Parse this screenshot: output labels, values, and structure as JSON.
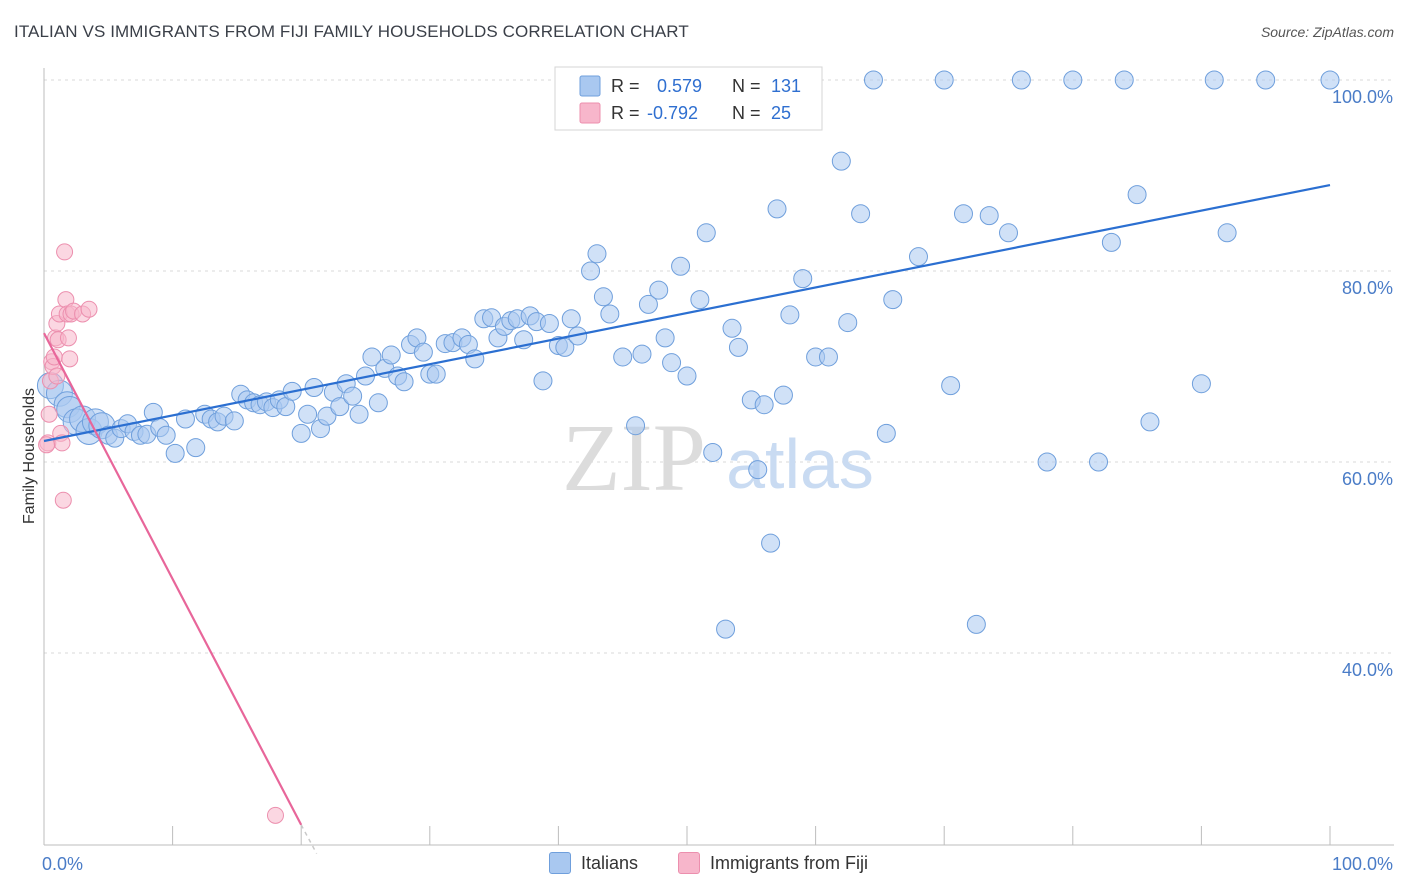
{
  "title": "ITALIAN VS IMMIGRANTS FROM FIJI FAMILY HOUSEHOLDS CORRELATION CHART",
  "source": "Source: ZipAtlas.com",
  "watermark": {
    "zip": "ZIP",
    "atlas": "atlas"
  },
  "colors": {
    "blue_fill": "#a9c8f0",
    "blue_stroke": "#6f9fdc",
    "blue_line": "#2b6fd1",
    "pink_fill": "#f7b6cb",
    "pink_stroke": "#ec8fae",
    "pink_line": "#e8669a",
    "axis_text": "#4a7cc7",
    "grid": "#d9d9d9"
  },
  "legend": {
    "rows": [
      {
        "r_label": "R =",
        "r_value": "0.579",
        "n_label": "N =",
        "n_value": "131",
        "color": "#a9c8f0"
      },
      {
        "r_label": "R =",
        "r_value": "-0.792",
        "n_label": "N =",
        "n_value": "25",
        "color": "#f7b6cb"
      }
    ]
  },
  "bottom_legend": [
    {
      "label": "Italians",
      "color": "#a9c8f0"
    },
    {
      "label": "Immigrants from Fiji",
      "color": "#f7b6cb"
    }
  ],
  "chart_data": {
    "type": "scatter",
    "title": "ITALIAN VS IMMIGRANTS FROM FIJI FAMILY HOUSEHOLDS CORRELATION CHART",
    "xlabel": "",
    "ylabel": "Family Households",
    "xlim": [
      0,
      100
    ],
    "ylim": [
      20,
      102
    ],
    "x_tick_labels": [
      "0.0%",
      "100.0%"
    ],
    "y_ticks": [
      40,
      60,
      80,
      100
    ],
    "y_tick_labels": [
      "40.0%",
      "60.0%",
      "80.0%",
      "100.0%"
    ],
    "grid": true,
    "series": [
      {
        "name": "Italians",
        "trend": {
          "x": [
            0,
            100
          ],
          "y": [
            62.2,
            89.0
          ]
        },
        "points": [
          [
            0.5,
            68.0
          ],
          [
            1.2,
            67.2
          ],
          [
            1.8,
            66.0
          ],
          [
            2.0,
            65.5
          ],
          [
            2.5,
            64.2
          ],
          [
            3.0,
            64.5
          ],
          [
            3.5,
            63.2
          ],
          [
            4.0,
            64.2
          ],
          [
            4.5,
            63.8
          ],
          [
            5.0,
            62.8
          ],
          [
            5.5,
            62.5
          ],
          [
            6.0,
            63.5
          ],
          [
            6.5,
            64.0
          ],
          [
            7.0,
            63.2
          ],
          [
            7.5,
            62.8
          ],
          [
            8.0,
            62.9
          ],
          [
            8.5,
            65.2
          ],
          [
            9.0,
            63.6
          ],
          [
            9.5,
            62.8
          ],
          [
            10.2,
            60.9
          ],
          [
            11.0,
            64.5
          ],
          [
            11.8,
            61.5
          ],
          [
            12.5,
            65.0
          ],
          [
            13.0,
            64.5
          ],
          [
            13.5,
            64.2
          ],
          [
            14.0,
            64.8
          ],
          [
            14.8,
            64.3
          ],
          [
            15.3,
            67.1
          ],
          [
            15.8,
            66.5
          ],
          [
            16.3,
            66.2
          ],
          [
            16.8,
            66.0
          ],
          [
            17.3,
            66.3
          ],
          [
            17.8,
            65.7
          ],
          [
            18.3,
            66.5
          ],
          [
            18.8,
            65.8
          ],
          [
            19.3,
            67.4
          ],
          [
            20.0,
            63.0
          ],
          [
            20.5,
            65.0
          ],
          [
            21.0,
            67.8
          ],
          [
            21.5,
            63.5
          ],
          [
            22.0,
            64.8
          ],
          [
            22.5,
            67.3
          ],
          [
            23.0,
            65.8
          ],
          [
            23.5,
            68.2
          ],
          [
            24.0,
            66.9
          ],
          [
            24.5,
            65.0
          ],
          [
            25.0,
            69.0
          ],
          [
            25.5,
            71.0
          ],
          [
            26.0,
            66.2
          ],
          [
            26.5,
            69.8
          ],
          [
            27.0,
            71.2
          ],
          [
            27.5,
            69.0
          ],
          [
            28.0,
            68.4
          ],
          [
            28.5,
            72.3
          ],
          [
            29.0,
            73.0
          ],
          [
            29.5,
            71.5
          ],
          [
            30.0,
            69.2
          ],
          [
            30.5,
            69.2
          ],
          [
            31.2,
            72.4
          ],
          [
            31.8,
            72.5
          ],
          [
            32.5,
            73.0
          ],
          [
            33.0,
            72.3
          ],
          [
            33.5,
            70.8
          ],
          [
            34.2,
            75.0
          ],
          [
            34.8,
            75.1
          ],
          [
            35.3,
            73.0
          ],
          [
            35.8,
            74.2
          ],
          [
            36.3,
            74.8
          ],
          [
            36.8,
            75.0
          ],
          [
            37.3,
            72.8
          ],
          [
            37.8,
            75.3
          ],
          [
            38.3,
            74.7
          ],
          [
            38.8,
            68.5
          ],
          [
            39.3,
            74.5
          ],
          [
            40.0,
            72.2
          ],
          [
            40.5,
            72.0
          ],
          [
            41.0,
            75.0
          ],
          [
            41.5,
            73.2
          ],
          [
            42.5,
            80.0
          ],
          [
            43.0,
            81.8
          ],
          [
            43.5,
            77.3
          ],
          [
            44.0,
            75.5
          ],
          [
            45.0,
            71.0
          ],
          [
            46.0,
            63.8
          ],
          [
            46.5,
            71.3
          ],
          [
            47.0,
            76.5
          ],
          [
            47.8,
            78.0
          ],
          [
            48.3,
            73.0
          ],
          [
            48.8,
            70.4
          ],
          [
            49.5,
            80.5
          ],
          [
            50.0,
            69.0
          ],
          [
            51.0,
            77.0
          ],
          [
            51.5,
            84.0
          ],
          [
            52.0,
            61.0
          ],
          [
            53.0,
            42.5
          ],
          [
            53.5,
            74.0
          ],
          [
            54.0,
            72.0
          ],
          [
            55.0,
            66.5
          ],
          [
            55.5,
            59.2
          ],
          [
            56.0,
            66.0
          ],
          [
            56.5,
            51.5
          ],
          [
            57.0,
            86.5
          ],
          [
            57.5,
            67.0
          ],
          [
            58.0,
            75.4
          ],
          [
            59.0,
            79.2
          ],
          [
            60.0,
            71.0
          ],
          [
            61.0,
            71.0
          ],
          [
            62.0,
            91.5
          ],
          [
            62.5,
            74.6
          ],
          [
            63.5,
            86.0
          ],
          [
            64.5,
            100.0
          ],
          [
            65.5,
            63.0
          ],
          [
            66.0,
            77.0
          ],
          [
            68.0,
            81.5
          ],
          [
            70.0,
            100.0
          ],
          [
            70.5,
            68.0
          ],
          [
            71.5,
            86.0
          ],
          [
            72.5,
            43.0
          ],
          [
            73.5,
            85.8
          ],
          [
            75.0,
            84.0
          ],
          [
            76.0,
            100.0
          ],
          [
            78.0,
            60.0
          ],
          [
            80.0,
            100.0
          ],
          [
            82.0,
            60.0
          ],
          [
            83.0,
            83.0
          ],
          [
            84.0,
            100.0
          ],
          [
            85.0,
            88.0
          ],
          [
            86.0,
            64.2
          ],
          [
            90.0,
            68.2
          ],
          [
            91.0,
            100.0
          ],
          [
            92.0,
            84.0
          ],
          [
            95.0,
            100.0
          ],
          [
            100.0,
            100.0
          ]
        ]
      },
      {
        "name": "Immigrants from Fiji",
        "trend": {
          "x": [
            0,
            20
          ],
          "y": [
            73.5,
            22.0
          ]
        },
        "points": [
          [
            0.3,
            62.0
          ],
          [
            0.4,
            65.0
          ],
          [
            0.5,
            68.5
          ],
          [
            0.6,
            70.5
          ],
          [
            0.7,
            70.0
          ],
          [
            0.8,
            71.0
          ],
          [
            0.9,
            73.0
          ],
          [
            1.0,
            74.5
          ],
          [
            1.1,
            72.8
          ],
          [
            1.2,
            75.5
          ],
          [
            1.3,
            63.0
          ],
          [
            1.4,
            62.0
          ],
          [
            1.5,
            56.0
          ],
          [
            1.6,
            82.0
          ],
          [
            1.7,
            77.0
          ],
          [
            1.8,
            75.5
          ],
          [
            1.9,
            73.0
          ],
          [
            2.0,
            70.8
          ],
          [
            2.1,
            75.5
          ],
          [
            2.3,
            75.8
          ],
          [
            3.0,
            75.5
          ],
          [
            3.5,
            76.0
          ],
          [
            1.0,
            69.0
          ],
          [
            0.2,
            61.8
          ],
          [
            18.0,
            23.0
          ]
        ]
      }
    ]
  }
}
